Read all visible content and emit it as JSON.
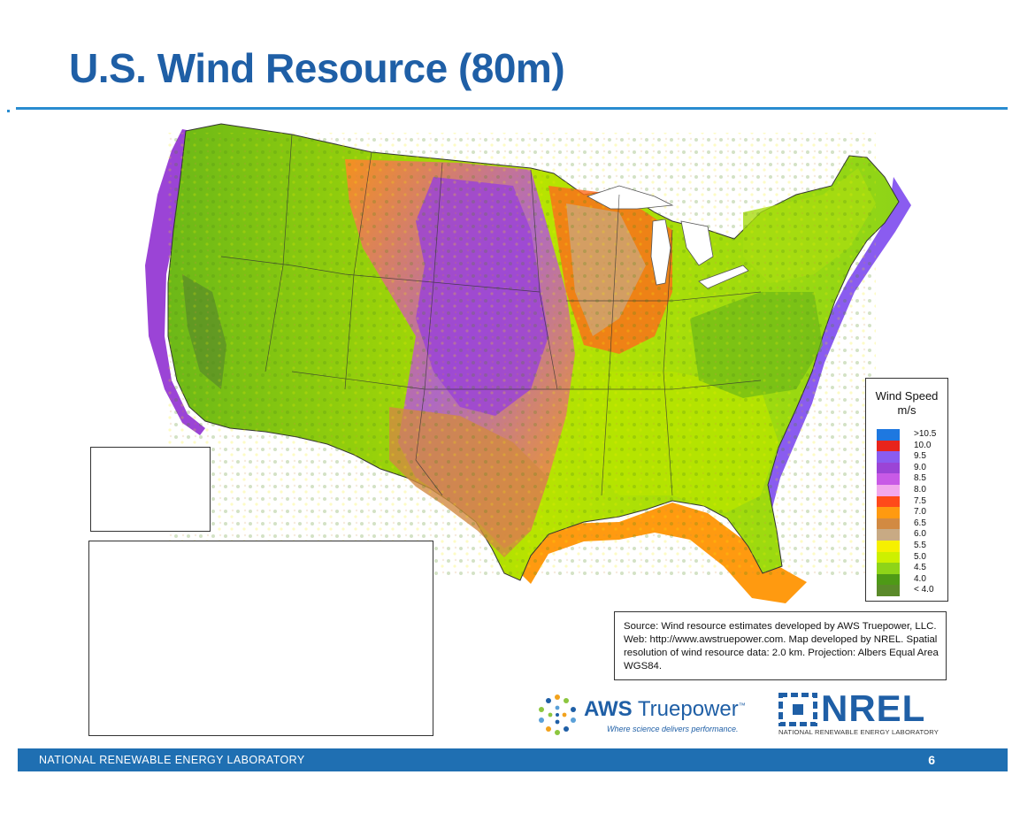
{
  "slide": {
    "title": "U.S. Wind Resource (80m)",
    "page_number": "6",
    "footer": "NATIONAL RENEWABLE ENERGY LABORATORY"
  },
  "legend": {
    "title_line1": "Wind Speed",
    "title_line2": "m/s",
    "items": [
      {
        "label": ">10.5",
        "color": "#1e78e0"
      },
      {
        "label": "10.0",
        "color": "#e8241c"
      },
      {
        "label": "9.5",
        "color": "#8a5cf0"
      },
      {
        "label": "9.0",
        "color": "#9b44d6"
      },
      {
        "label": "8.5",
        "color": "#c85ae6"
      },
      {
        "label": "8.0",
        "color": "#f2a8ec"
      },
      {
        "label": "7.5",
        "color": "#ff4a1a"
      },
      {
        "label": "7.0",
        "color": "#ff9a10"
      },
      {
        "label": "6.5",
        "color": "#d28a42"
      },
      {
        "label": "6.0",
        "color": "#c8aa84"
      },
      {
        "label": "5.5",
        "color": "#f6f000"
      },
      {
        "label": "5.0",
        "color": "#cdf000"
      },
      {
        "label": "4.5",
        "color": "#8ed418"
      },
      {
        "label": "4.0",
        "color": "#4e9a16"
      },
      {
        "label": "< 4.0",
        "color": "#5a8a2a"
      }
    ]
  },
  "source_note": "Source: Wind resource estimates developed by AWS Truepower, LLC.  Web: http://www.awstruepower.com. Map developed by NREL.  Spatial resolution of wind resource data: 2.0 km. Projection: Albers Equal Area WGS84.",
  "logos": {
    "aws_bold": "AWS",
    "aws_rest": "Truepower",
    "aws_tm": "™",
    "aws_tagline": "Where science delivers performance.",
    "nrel_name": "NREL",
    "nrel_sub": "NATIONAL RENEWABLE ENERGY LABORATORY"
  },
  "colors": {
    "title_blue": "#1f5fa6",
    "rule_blue": "#2a8cd0",
    "footer_blue": "#1f6fb2"
  }
}
